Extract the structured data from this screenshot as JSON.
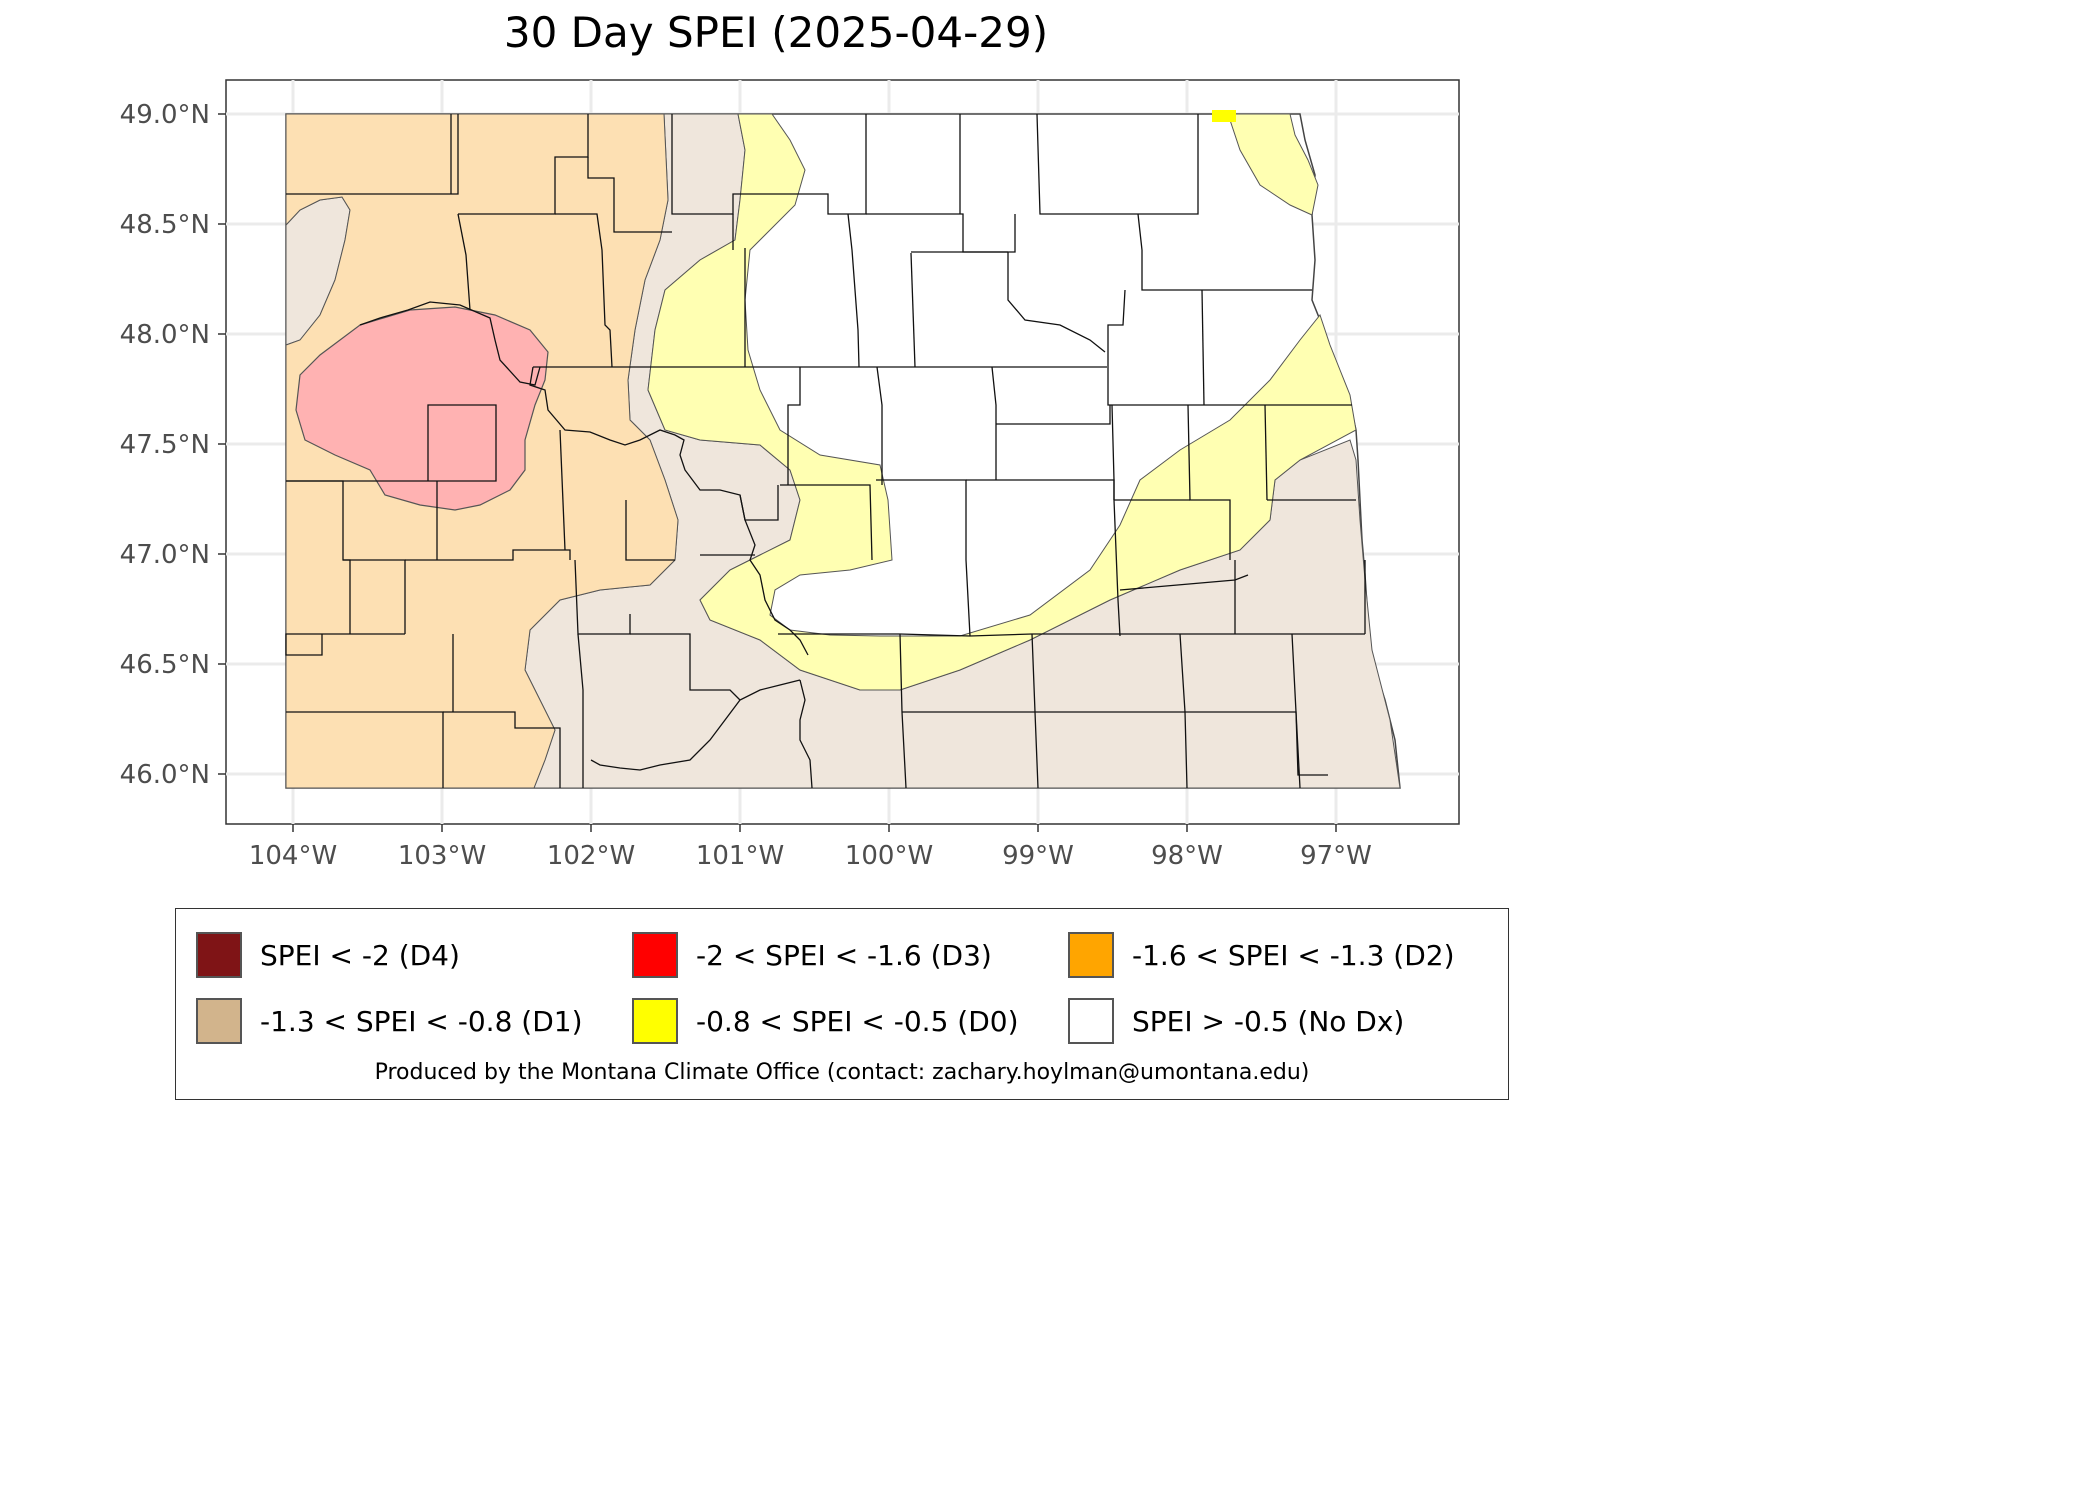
{
  "title": "30 Day SPEI (2025-04-29)",
  "axes": {
    "y_ticks": [
      "49.0°N",
      "48.5°N",
      "48.0°N",
      "47.5°N",
      "47.0°N",
      "46.5°N",
      "46.0°N"
    ],
    "x_ticks": [
      "104°W",
      "103°W",
      "102°W",
      "101°W",
      "100°W",
      "99°W",
      "98°W",
      "97°W"
    ]
  },
  "colors": {
    "D4": "#7f1416",
    "D3": "#ff0000",
    "D2": "#ffa500",
    "D1": "#d2b48c",
    "D0": "#ffff00",
    "none": "#ffffff",
    "fill_D1": "#efe6dc",
    "fill_D0": "#ffffb2",
    "fill_D2": "#fde0b3",
    "fill_D3": "#ffb2b2"
  },
  "legend": {
    "items": [
      {
        "label": "SPEI < -2 (D4)",
        "color": "#7f1416"
      },
      {
        "label": "-2 < SPEI < -1.6 (D3)",
        "color": "#ff0000"
      },
      {
        "label": "-1.6 < SPEI < -1.3 (D2)",
        "color": "#ffa500"
      },
      {
        "label": "-1.3 < SPEI < -0.8 (D1)",
        "color": "#d2b48c"
      },
      {
        "label": "-0.8 < SPEI < -0.5 (D0)",
        "color": "#ffff00"
      },
      {
        "label": "SPEI > -0.5 (No Dx)",
        "color": "#ffffff"
      }
    ],
    "credit": "Produced by the Montana Climate Office (contact: zachary.hoylman@umontana.edu)"
  }
}
